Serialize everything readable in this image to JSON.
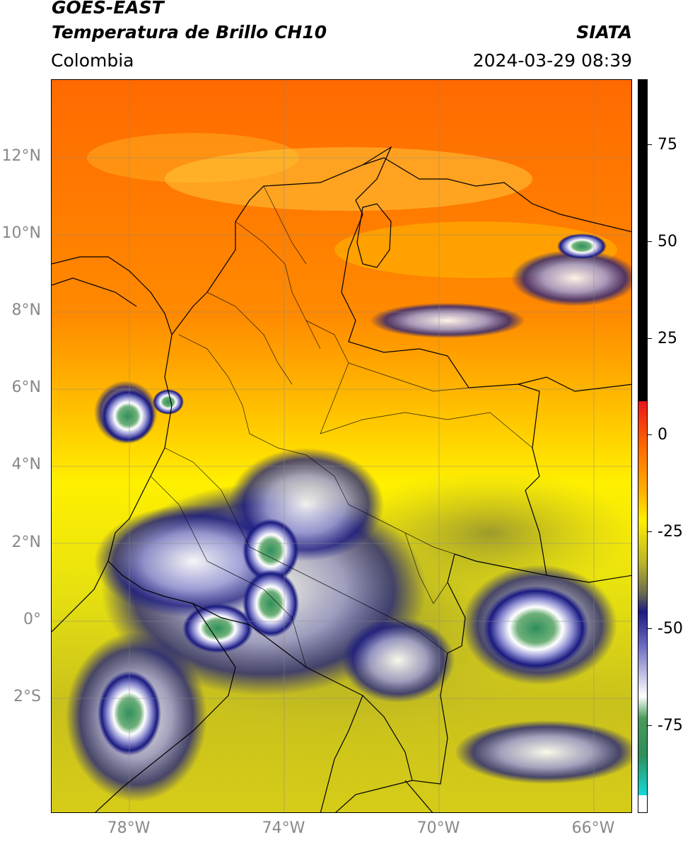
{
  "header": {
    "satellite": "GOES-EAST",
    "product": "Temperatura de Brillo CH10",
    "region": "Colombia",
    "source": "SIATA",
    "datetime": "2024-03-29 08:39"
  },
  "axes": {
    "lat_labels": [
      "12°N",
      "10°N",
      "8°N",
      "6°N",
      "4°N",
      "2°N",
      "0°",
      "2°S"
    ],
    "lon_labels": [
      "78°W",
      "74°W",
      "70°W",
      "66°W"
    ],
    "lat_range": [
      -4.9,
      14.1
    ],
    "lon_range": [
      -80.0,
      -65.0
    ],
    "grid": true
  },
  "colorbar": {
    "ticks": [
      "75",
      "50",
      "25",
      "0",
      "-25",
      "-50",
      "-75"
    ],
    "range": [
      -95,
      90
    ],
    "colors": {
      "warm_above_10": "#000000",
      "red": "#e8161a",
      "orange": "#ff7000",
      "yellow": "#ffef00",
      "olive": "#b8b22c",
      "navy": "#1a1a80",
      "white": "#ffffff",
      "green": "#2e8f5a",
      "cyan": "#18d8d8"
    }
  }
}
